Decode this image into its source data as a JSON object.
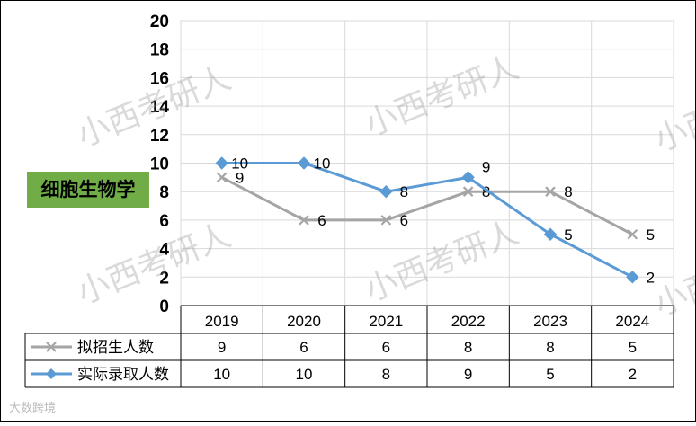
{
  "chart_data": {
    "type": "line",
    "categories": [
      "2019",
      "2020",
      "2021",
      "2022",
      "2023",
      "2024"
    ],
    "series": [
      {
        "name": "拟招生人数",
        "values": [
          9,
          6,
          6,
          8,
          8,
          5
        ],
        "color": "#a5a5a5",
        "marker": "x"
      },
      {
        "name": "实际录取人数",
        "values": [
          10,
          10,
          8,
          9,
          5,
          2
        ],
        "color": "#5b9bd5",
        "marker": "diamond"
      }
    ],
    "ylim": [
      0,
      20
    ],
    "yticks": [
      "0",
      "2",
      "4",
      "6",
      "8",
      "10",
      "12",
      "14",
      "16",
      "18",
      "20"
    ],
    "grid": true,
    "legend": "data-table-bottom",
    "title": "",
    "xlabel": "",
    "ylabel": ""
  },
  "badge": {
    "text": "细胞生物学",
    "color": "#70ad47"
  },
  "watermark": {
    "text": "小西考研人"
  },
  "logo": {
    "text": "大数跨境"
  }
}
